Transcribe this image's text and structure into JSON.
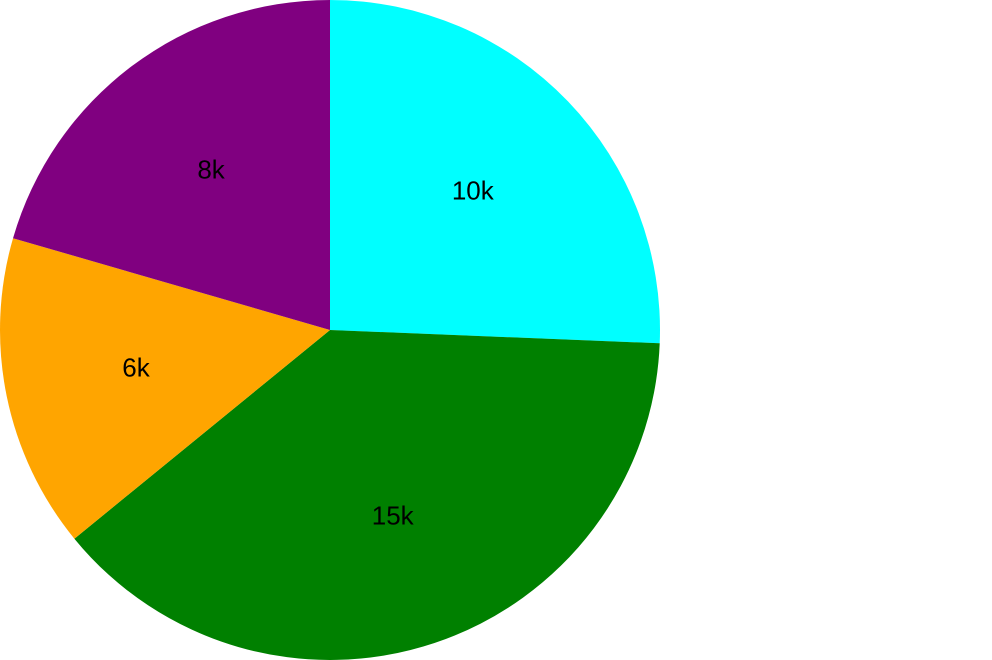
{
  "chart_data": {
    "type": "pie",
    "title": "",
    "start_angle_deg": 0,
    "direction": "clockwise",
    "slices": [
      {
        "label": "10k",
        "value": 10000,
        "color": "#00FFFF"
      },
      {
        "label": "15k",
        "value": 15000,
        "color": "#008000"
      },
      {
        "label": "6k",
        "value": 6000,
        "color": "#FFA500"
      },
      {
        "label": "8k",
        "value": 8000,
        "color": "#800080"
      }
    ],
    "legend": "none"
  }
}
